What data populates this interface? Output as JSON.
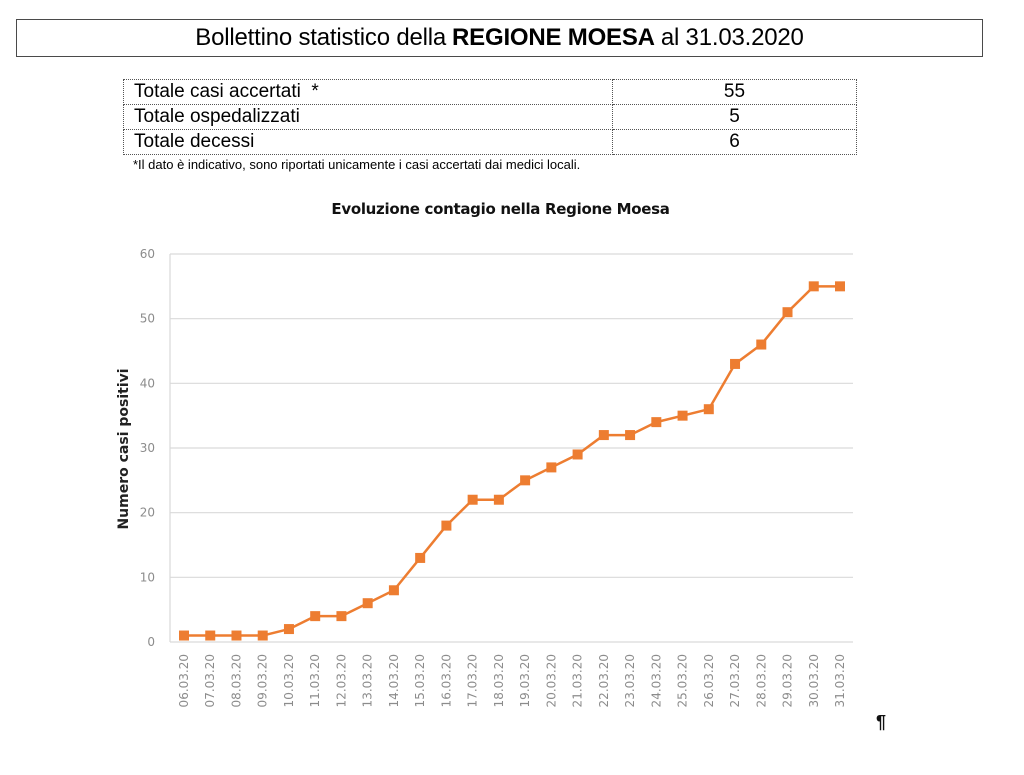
{
  "header": {
    "title_prefix": "Bollettino statistico della",
    "title_bold": "REGIONE MOESA",
    "title_suffix": "al 31.03.2020"
  },
  "stats": {
    "rows": [
      {
        "label": "Totale casi accertati  *",
        "value": "55"
      },
      {
        "label": "Totale ospedalizzati",
        "value": "5"
      },
      {
        "label": "Totale decessi",
        "value": "6"
      }
    ],
    "footnote": "*Il dato è indicativo, sono riportati unicamente i casi accertati dai medici locali."
  },
  "end_mark": "¶",
  "colors": {
    "series": "#ED7D31",
    "grid": "#d9d9d9",
    "tick_text": "#8c8c8c"
  },
  "chart_data": {
    "type": "line",
    "title": "Evoluzione contagio nella Regione Moesa",
    "xlabel": "",
    "ylabel": "Numero casi positivi",
    "ylim": [
      0,
      60
    ],
    "yticks": [
      0,
      10,
      20,
      30,
      40,
      50,
      60
    ],
    "grid": true,
    "legend": null,
    "marker": "square",
    "categories": [
      "06.03.20",
      "07.03.20",
      "08.03.20",
      "09.03.20",
      "10.03.20",
      "11.03.20",
      "12.03.20",
      "13.03.20",
      "14.03.20",
      "15.03.20",
      "16.03.20",
      "17.03.20",
      "18.03.20",
      "19.03.20",
      "20.03.20",
      "21.03.20",
      "22.03.20",
      "23.03.20",
      "24.03.20",
      "25.03.20",
      "26.03.20",
      "27.03.20",
      "28.03.20",
      "29.03.20",
      "30.03.20",
      "31.03.20"
    ],
    "series": [
      {
        "name": "Numero casi positivi",
        "values": [
          1,
          1,
          1,
          1,
          2,
          4,
          4,
          6,
          8,
          13,
          18,
          22,
          22,
          25,
          27,
          29,
          32,
          32,
          34,
          35,
          36,
          43,
          46,
          51,
          55,
          55
        ]
      }
    ]
  }
}
